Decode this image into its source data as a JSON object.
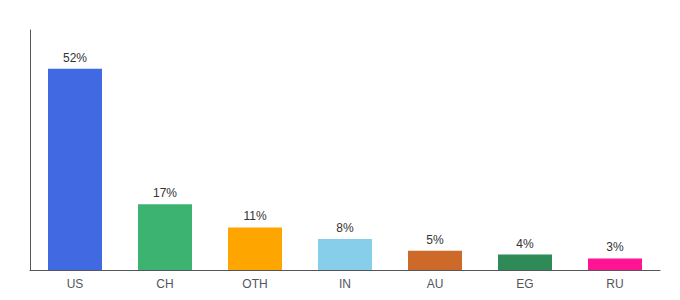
{
  "chart_data": {
    "type": "bar",
    "categories": [
      "US",
      "CH",
      "OTH",
      "IN",
      "AU",
      "EG",
      "RU"
    ],
    "values": [
      52,
      17,
      11,
      8,
      5,
      4,
      3
    ],
    "value_labels": [
      "52%",
      "17%",
      "11%",
      "8%",
      "5%",
      "4%",
      "3%"
    ],
    "colors": [
      "#4169E1",
      "#3CB371",
      "#FFA500",
      "#87CEEB",
      "#CD6A2A",
      "#2E8B57",
      "#FF1493"
    ],
    "ylim": [
      0,
      62
    ],
    "grid": false,
    "data_labels": true,
    "tick_labels": "x"
  }
}
